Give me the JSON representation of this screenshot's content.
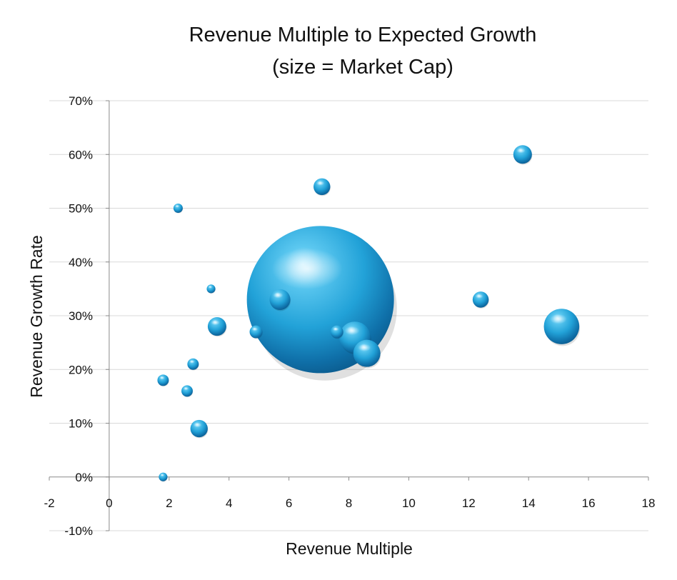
{
  "chart_data": {
    "type": "bubble",
    "title": "Revenue Multiple to Expected Growth",
    "subtitle": "(size = Market Cap)",
    "xlabel": "Revenue Multiple",
    "ylabel": "Revenue Growth Rate",
    "xlim": [
      -2,
      18
    ],
    "ylim": [
      -0.1,
      0.7
    ],
    "x_ticks": [
      -2,
      0,
      2,
      4,
      6,
      8,
      10,
      12,
      14,
      16,
      18
    ],
    "y_ticks": [
      {
        "value": -0.1,
        "label": "-10%"
      },
      {
        "value": 0.0,
        "label": "0%"
      },
      {
        "value": 0.1,
        "label": "10%"
      },
      {
        "value": 0.2,
        "label": "20%"
      },
      {
        "value": 0.3,
        "label": "30%"
      },
      {
        "value": 0.4,
        "label": "40%"
      },
      {
        "value": 0.5,
        "label": "50%"
      },
      {
        "value": 0.6,
        "label": "60%"
      },
      {
        "value": 0.7,
        "label": "70%"
      }
    ],
    "grid": {
      "horizontal": true,
      "vertical": false
    },
    "bubble_color": "#2aa8dc",
    "points": [
      {
        "x": 7.05,
        "y": 0.33,
        "size": 100
      },
      {
        "x": 8.2,
        "y": 0.26,
        "size": 4.5
      },
      {
        "x": 15.1,
        "y": 0.28,
        "size": 5.8
      },
      {
        "x": 8.6,
        "y": 0.23,
        "size": 3.4
      },
      {
        "x": 5.7,
        "y": 0.33,
        "size": 2.0
      },
      {
        "x": 13.8,
        "y": 0.6,
        "size": 1.6
      },
      {
        "x": 3.6,
        "y": 0.28,
        "size": 1.6
      },
      {
        "x": 3.0,
        "y": 0.09,
        "size": 1.4
      },
      {
        "x": 7.1,
        "y": 0.54,
        "size": 1.3
      },
      {
        "x": 12.4,
        "y": 0.33,
        "size": 1.2
      },
      {
        "x": 7.6,
        "y": 0.27,
        "size": 0.75
      },
      {
        "x": 4.9,
        "y": 0.27,
        "size": 0.75
      },
      {
        "x": 2.8,
        "y": 0.21,
        "size": 0.6
      },
      {
        "x": 2.6,
        "y": 0.16,
        "size": 0.6
      },
      {
        "x": 1.8,
        "y": 0.18,
        "size": 0.6
      },
      {
        "x": 2.3,
        "y": 0.5,
        "size": 0.4
      },
      {
        "x": 3.4,
        "y": 0.35,
        "size": 0.35
      },
      {
        "x": 1.8,
        "y": 0.0,
        "size": 0.35
      }
    ]
  }
}
